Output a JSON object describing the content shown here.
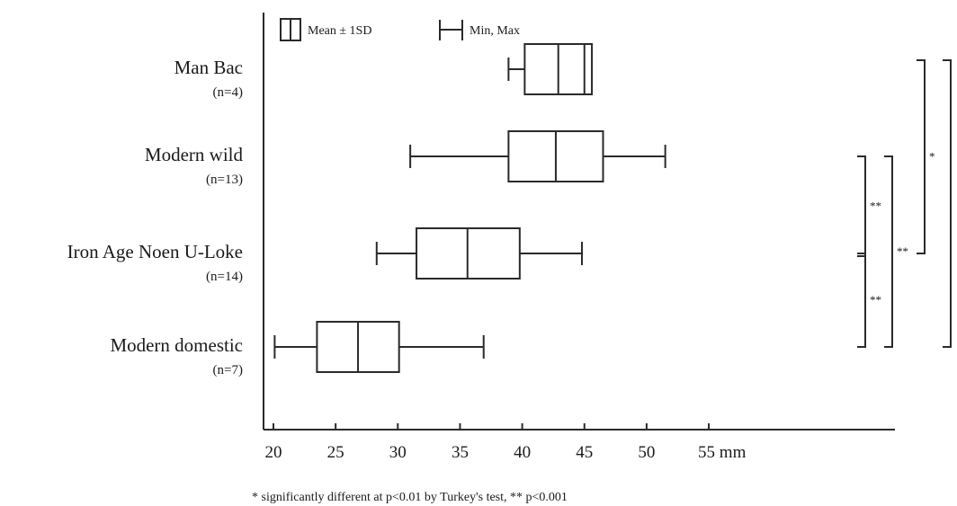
{
  "chart_data": {
    "type": "boxplot",
    "unit": "mm",
    "xlim": [
      20,
      55
    ],
    "x_ticks": [
      "20",
      "25",
      "30",
      "35",
      "40",
      "45",
      "50",
      "55 mm"
    ],
    "legend": {
      "box": "Mean ± 1SD",
      "whisker": "Min, Max",
      "placement": "top-left"
    },
    "series": [
      {
        "name": "Man Bac",
        "n_label": "(n=4)",
        "min": 38.9,
        "box_low": 40.2,
        "mean": 42.9,
        "box_high": 45.6,
        "max": 45.6,
        "extra_mark": 45.0
      },
      {
        "name": "Modern wild",
        "n_label": "(n=13)",
        "min": 31.0,
        "box_low": 38.9,
        "mean": 42.7,
        "box_high": 46.5,
        "max": 51.5
      },
      {
        "name": "Iron Age Noen U-Loke",
        "n_label": "(n=14)",
        "min": 28.3,
        "box_low": 31.5,
        "mean": 35.6,
        "box_high": 39.8,
        "max": 44.8
      },
      {
        "name": "Modern domestic",
        "n_label": "(n=7)",
        "min": 20.1,
        "box_low": 23.5,
        "mean": 26.8,
        "box_high": 30.1,
        "max": 36.9
      }
    ],
    "comparisons": [
      {
        "groups": [
          "Modern wild",
          "Iron Age Noen U-Loke"
        ],
        "label": "**"
      },
      {
        "groups": [
          "Iron Age Noen U-Loke",
          "Modern domestic"
        ],
        "label": "**"
      },
      {
        "groups": [
          "Modern wild",
          "Modern domestic"
        ],
        "label": "**"
      },
      {
        "groups": [
          "Man Bac",
          "Iron Age Noen U-Loke"
        ],
        "label": "*"
      },
      {
        "groups": [
          "Man Bac",
          "Modern domestic"
        ],
        "label": ""
      }
    ],
    "footnote": "* significantly different at p<0.01 by Turkey's test,  ** p<0.001"
  }
}
